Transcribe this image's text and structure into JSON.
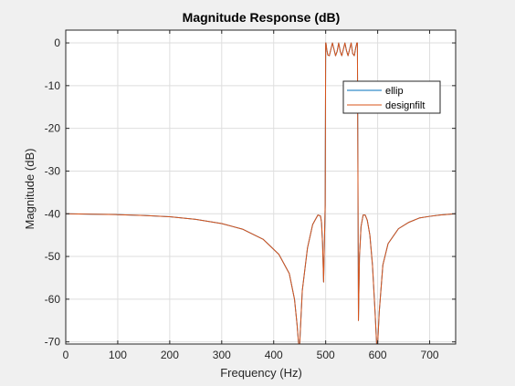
{
  "chart_data": {
    "type": "line",
    "title": "Magnitude Response (dB)",
    "xlabel": "Frequency (Hz)",
    "ylabel": "Magnitude (dB)",
    "xlim": [
      0,
      750
    ],
    "ylim": [
      -70.5,
      3
    ],
    "xticks": [
      0,
      100,
      200,
      300,
      400,
      500,
      600,
      700
    ],
    "yticks": [
      0,
      -10,
      -20,
      -30,
      -40,
      -50,
      -60,
      -70
    ],
    "grid": true,
    "legend_position": "top-right",
    "series": [
      {
        "name": "ellip",
        "color": "#0072bd"
      },
      {
        "name": "designfilt",
        "color": "#d95319"
      }
    ],
    "x": [
      0,
      50,
      100,
      150,
      200,
      250,
      300,
      340,
      380,
      410,
      430,
      440,
      445,
      448,
      450,
      455,
      465,
      475,
      485,
      490,
      492,
      494,
      496,
      498,
      499,
      500,
      500.5,
      502,
      504,
      507,
      510,
      513,
      516,
      519,
      522,
      525,
      528,
      531,
      534,
      537,
      540,
      543,
      546,
      549,
      552,
      555,
      558,
      560,
      561,
      562,
      563,
      565,
      568,
      572,
      576,
      580,
      585,
      590,
      595,
      598,
      600,
      603,
      610,
      620,
      640,
      660,
      680,
      700,
      720,
      750
    ],
    "y": [
      -40,
      -40.1,
      -40.2,
      -40.4,
      -40.7,
      -41.3,
      -42.3,
      -43.6,
      -46,
      -49.5,
      -54,
      -60,
      -66,
      -70.5,
      -70.5,
      -58,
      -48,
      -42.5,
      -40.3,
      -40.5,
      -42,
      -47,
      -56,
      -44,
      -38,
      0,
      0,
      -1.5,
      -2.8,
      -3,
      -1.5,
      0,
      -1.5,
      -3,
      -2,
      0,
      -2,
      -3,
      -1.5,
      0,
      -1.8,
      -3,
      -1.5,
      0,
      -2.5,
      -3,
      -1,
      0,
      0,
      -30,
      -65,
      -50,
      -43,
      -40.3,
      -40.3,
      -41.5,
      -45,
      -52,
      -63,
      -70.5,
      -70.5,
      -63,
      -52,
      -47,
      -43.5,
      -42,
      -41,
      -40.6,
      -40.3,
      -40
    ]
  }
}
